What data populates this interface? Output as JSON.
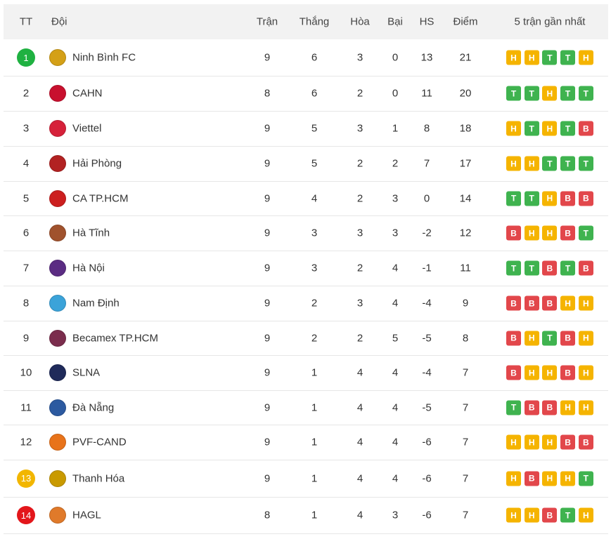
{
  "table": {
    "header": {
      "rank": "TT",
      "team": "Đội",
      "played": "Trận",
      "won": "Thắng",
      "drawn": "Hòa",
      "lost": "Bại",
      "gd": "HS",
      "points": "Điểm",
      "form": "5 trận gần nhất"
    },
    "rows": [
      {
        "rank": 1,
        "rank_badge": "#1fb141",
        "team": "Ninh Bình FC",
        "played": 9,
        "won": 6,
        "drawn": 3,
        "lost": 0,
        "gd": 13,
        "points": 21,
        "form": [
          "H",
          "H",
          "T",
          "T",
          "H"
        ]
      },
      {
        "rank": 2,
        "team": "CAHN",
        "played": 8,
        "won": 6,
        "drawn": 2,
        "lost": 0,
        "gd": 11,
        "points": 20,
        "form": [
          "T",
          "T",
          "H",
          "T",
          "T"
        ]
      },
      {
        "rank": 3,
        "team": "Viettel",
        "played": 9,
        "won": 5,
        "drawn": 3,
        "lost": 1,
        "gd": 8,
        "points": 18,
        "form": [
          "H",
          "T",
          "H",
          "T",
          "B"
        ]
      },
      {
        "rank": 4,
        "team": "Hải Phòng",
        "played": 9,
        "won": 5,
        "drawn": 2,
        "lost": 2,
        "gd": 7,
        "points": 17,
        "form": [
          "H",
          "H",
          "T",
          "T",
          "T"
        ]
      },
      {
        "rank": 5,
        "team": "CA TP.HCM",
        "played": 9,
        "won": 4,
        "drawn": 2,
        "lost": 3,
        "gd": 0,
        "points": 14,
        "form": [
          "T",
          "T",
          "H",
          "B",
          "B"
        ]
      },
      {
        "rank": 6,
        "team": "Hà Tĩnh",
        "played": 9,
        "won": 3,
        "drawn": 3,
        "lost": 3,
        "gd": -2,
        "points": 12,
        "form": [
          "B",
          "H",
          "H",
          "B",
          "T"
        ]
      },
      {
        "rank": 7,
        "team": "Hà Nội",
        "played": 9,
        "won": 3,
        "drawn": 2,
        "lost": 4,
        "gd": -1,
        "points": 11,
        "form": [
          "T",
          "T",
          "B",
          "T",
          "B"
        ]
      },
      {
        "rank": 8,
        "team": "Nam Định",
        "played": 9,
        "won": 2,
        "drawn": 3,
        "lost": 4,
        "gd": -4,
        "points": 9,
        "form": [
          "B",
          "B",
          "B",
          "H",
          "H"
        ]
      },
      {
        "rank": 9,
        "team": "Becamex TP.HCM",
        "played": 9,
        "won": 2,
        "drawn": 2,
        "lost": 5,
        "gd": -5,
        "points": 8,
        "form": [
          "B",
          "H",
          "T",
          "B",
          "H"
        ]
      },
      {
        "rank": 10,
        "team": "SLNA",
        "played": 9,
        "won": 1,
        "drawn": 4,
        "lost": 4,
        "gd": -4,
        "points": 7,
        "form": [
          "B",
          "H",
          "H",
          "B",
          "H"
        ]
      },
      {
        "rank": 11,
        "team": "Đà Nẵng",
        "played": 9,
        "won": 1,
        "drawn": 4,
        "lost": 4,
        "gd": -5,
        "points": 7,
        "form": [
          "T",
          "B",
          "B",
          "H",
          "H"
        ]
      },
      {
        "rank": 12,
        "team": "PVF-CAND",
        "played": 9,
        "won": 1,
        "drawn": 4,
        "lost": 4,
        "gd": -6,
        "points": 7,
        "form": [
          "H",
          "H",
          "H",
          "B",
          "B"
        ]
      },
      {
        "rank": 13,
        "rank_badge": "#f2b600",
        "team": "Thanh Hóa",
        "played": 9,
        "won": 1,
        "drawn": 4,
        "lost": 4,
        "gd": -6,
        "points": 7,
        "form": [
          "H",
          "B",
          "H",
          "H",
          "T"
        ]
      },
      {
        "rank": 14,
        "rank_badge": "#e3161b",
        "team": "HAGL",
        "played": 8,
        "won": 1,
        "drawn": 4,
        "lost": 3,
        "gd": -6,
        "points": 7,
        "form": [
          "H",
          "H",
          "B",
          "T",
          "H"
        ]
      }
    ]
  }
}
